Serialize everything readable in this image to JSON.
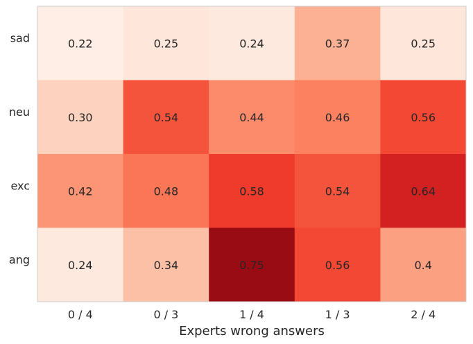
{
  "chart_data": {
    "type": "heatmap",
    "title": "",
    "xlabel": "Experts wrong answers",
    "ylabel": "",
    "x_categories": [
      "0 / 4",
      "0 / 3",
      "1 / 4",
      "1 / 3",
      "2 / 4"
    ],
    "y_categories": [
      "sad",
      "neu",
      "exc",
      "ang"
    ],
    "values": [
      [
        "0.22",
        "0.25",
        "0.24",
        "0.37",
        "0.25"
      ],
      [
        "0.30",
        "0.54",
        "0.44",
        "0.46",
        "0.56"
      ],
      [
        "0.42",
        "0.48",
        "0.58",
        "0.54",
        "0.64"
      ],
      [
        "0.24",
        "0.34",
        "0.75",
        "0.56",
        "0.4"
      ]
    ],
    "colormap": "Reds",
    "grid": false,
    "legend": "none"
  }
}
